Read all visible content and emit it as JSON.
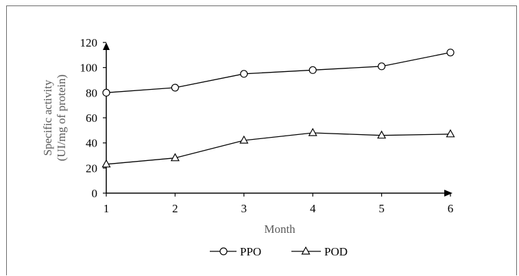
{
  "chart_data": {
    "type": "line",
    "title": "",
    "xlabel": "Month",
    "ylabel": "Specific activity (UI/mg of protein)",
    "ylabel_lines": [
      "Specific activity",
      "(UI/mg of protein)"
    ],
    "categories": [
      1,
      2,
      3,
      4,
      5,
      6
    ],
    "x_ticks": [
      "1",
      "2",
      "3",
      "4",
      "5",
      "6"
    ],
    "y_ticks": [
      "0",
      "20",
      "40",
      "60",
      "80",
      "100",
      "120"
    ],
    "ylim": [
      0,
      120
    ],
    "grid": false,
    "legend_position": "bottom",
    "series": [
      {
        "name": "PPO",
        "marker": "circle",
        "values": [
          80,
          84,
          95,
          98,
          101,
          112
        ],
        "errors": [
          0,
          1,
          1,
          2,
          1,
          1
        ]
      },
      {
        "name": "POD",
        "marker": "triangle",
        "values": [
          23,
          28,
          42,
          48,
          46,
          47
        ],
        "errors": [
          1,
          1,
          2,
          2,
          1,
          1
        ]
      }
    ],
    "colors": {
      "line": "#000000",
      "marker_fill": "#ffffff",
      "axis_title": "#5a5a5a"
    }
  }
}
